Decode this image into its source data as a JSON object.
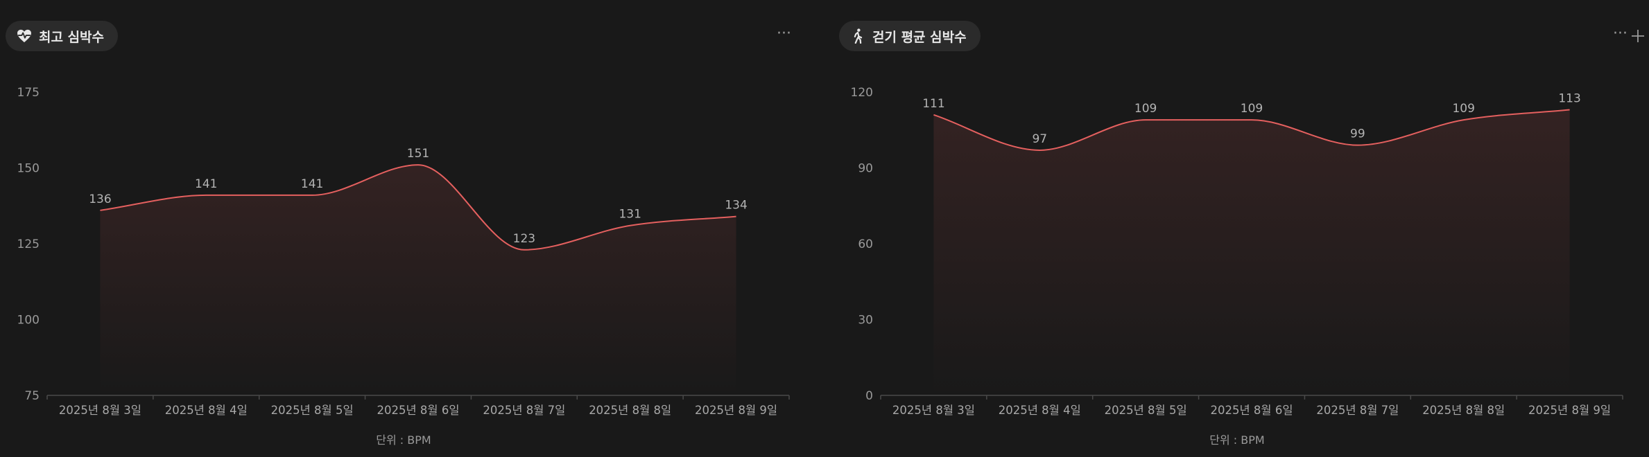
{
  "panels": [
    {
      "id": "max-heart-rate",
      "header": {
        "title": "최고 심박수",
        "icon": "heart-pulse-icon"
      },
      "unit_label": "단위 : BPM",
      "chart_data": {
        "type": "area",
        "title": "최고 심박수",
        "categories": [
          "2025년 8월 3일",
          "2025년 8월 4일",
          "2025년 8월 5일",
          "2025년 8월 6일",
          "2025년 8월 7일",
          "2025년 8월 8일",
          "2025년 8월 9일"
        ],
        "series": [
          {
            "values": [
              136,
              141,
              141,
              151,
              123,
              131,
              134
            ]
          }
        ],
        "yticks": [
          75,
          100,
          125,
          150,
          175
        ],
        "ylim": [
          75,
          175
        ],
        "ylabel": "",
        "xlabel": "단위 : BPM",
        "grid": false,
        "line_color": "#e5605f"
      }
    },
    {
      "id": "walking-avg-heart-rate",
      "header": {
        "title": "걷기 평균 심박수",
        "icon": "walking-person-icon"
      },
      "unit_label": "단위 : BPM",
      "chart_data": {
        "type": "area",
        "title": "걷기 평균 심박수",
        "categories": [
          "2025년 8월 3일",
          "2025년 8월 4일",
          "2025년 8월 5일",
          "2025년 8월 6일",
          "2025년 8월 7일",
          "2025년 8월 8일",
          "2025년 8월 9일"
        ],
        "series": [
          {
            "values": [
              111,
              97,
              109,
              109,
              99,
              109,
              113
            ]
          }
        ],
        "yticks": [
          0,
          30,
          60,
          90,
          120
        ],
        "ylim": [
          0,
          120
        ],
        "ylabel": "",
        "xlabel": "단위 : BPM",
        "grid": false,
        "line_color": "#e5605f"
      }
    }
  ],
  "menu": {
    "more_label": "···"
  }
}
